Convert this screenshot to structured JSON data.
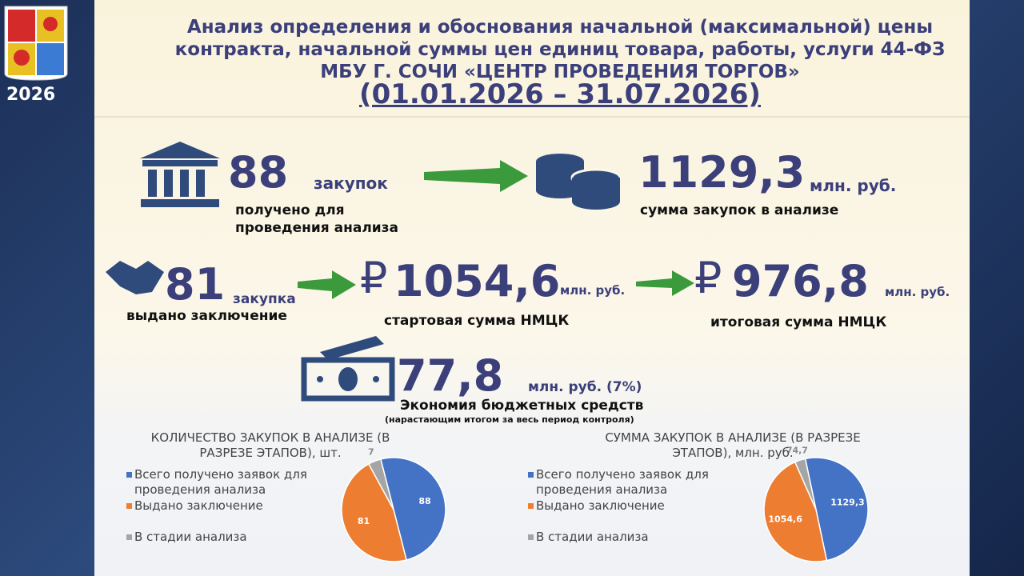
{
  "badge": {
    "year": "2026"
  },
  "header": {
    "title_lines": [
      "Анализ определения и обоснования начальной (максимальной) цены",
      "контракта, начальной суммы цен единиц товара, работы, услуги 44-ФЗ",
      "МБУ Г. СОЧИ «ЦЕНТР ПРОВЕДЕНИЯ ТОРГОВ»"
    ],
    "period": "(01.01.2026 – 31.07.2026)"
  },
  "stats": {
    "received": {
      "number": "88",
      "unit": "закупок",
      "caption": "получено для проведения анализа"
    },
    "sum": {
      "number": "1129,3",
      "unit": "млн. руб.",
      "caption": "сумма закупок в анализе"
    },
    "issued": {
      "number": "81",
      "unit": "закупка",
      "caption": "выдано заключение"
    },
    "start": {
      "currency": "₽",
      "number": "1054,6",
      "unit": "млн. руб.",
      "caption": "стартовая сумма НМЦК"
    },
    "final": {
      "currency": "₽",
      "number": "976,8",
      "unit": "млн. руб.",
      "caption": "итоговая сумма НМЦК"
    },
    "saving": {
      "number": "77,8",
      "unit": "млн. руб. (7%)",
      "caption": "Экономия бюджетных средств",
      "note": "(нарастающим итогом за весь период контроля)"
    }
  },
  "chart_data": [
    {
      "type": "pie",
      "title": "КОЛИЧЕСТВО ЗАКУПОК В АНАЛИЗЕ (В РАЗРЕЗЕ ЭТАПОВ), шт.",
      "categories": [
        "Всего получено заявок для проведения анализа",
        "Выдано заключение",
        "В стадии анализа"
      ],
      "values": [
        88,
        81,
        7
      ],
      "colors": [
        "#4472c4",
        "#ed7d31",
        "#a5a5a5"
      ]
    },
    {
      "type": "pie",
      "title": "СУММА ЗАКУПОК В АНАЛИЗЕ  (В РАЗРЕЗЕ ЭТАПОВ), млн. руб.",
      "categories": [
        "Всего получено заявок для проведения анализа",
        "Выдано заключение",
        "В стадии анализа"
      ],
      "values": [
        1129.3,
        1054.6,
        74.7
      ],
      "value_labels": [
        "1129,3",
        "1054,6",
        "74,7"
      ],
      "colors": [
        "#4472c4",
        "#ed7d31",
        "#a5a5a5"
      ]
    }
  ]
}
